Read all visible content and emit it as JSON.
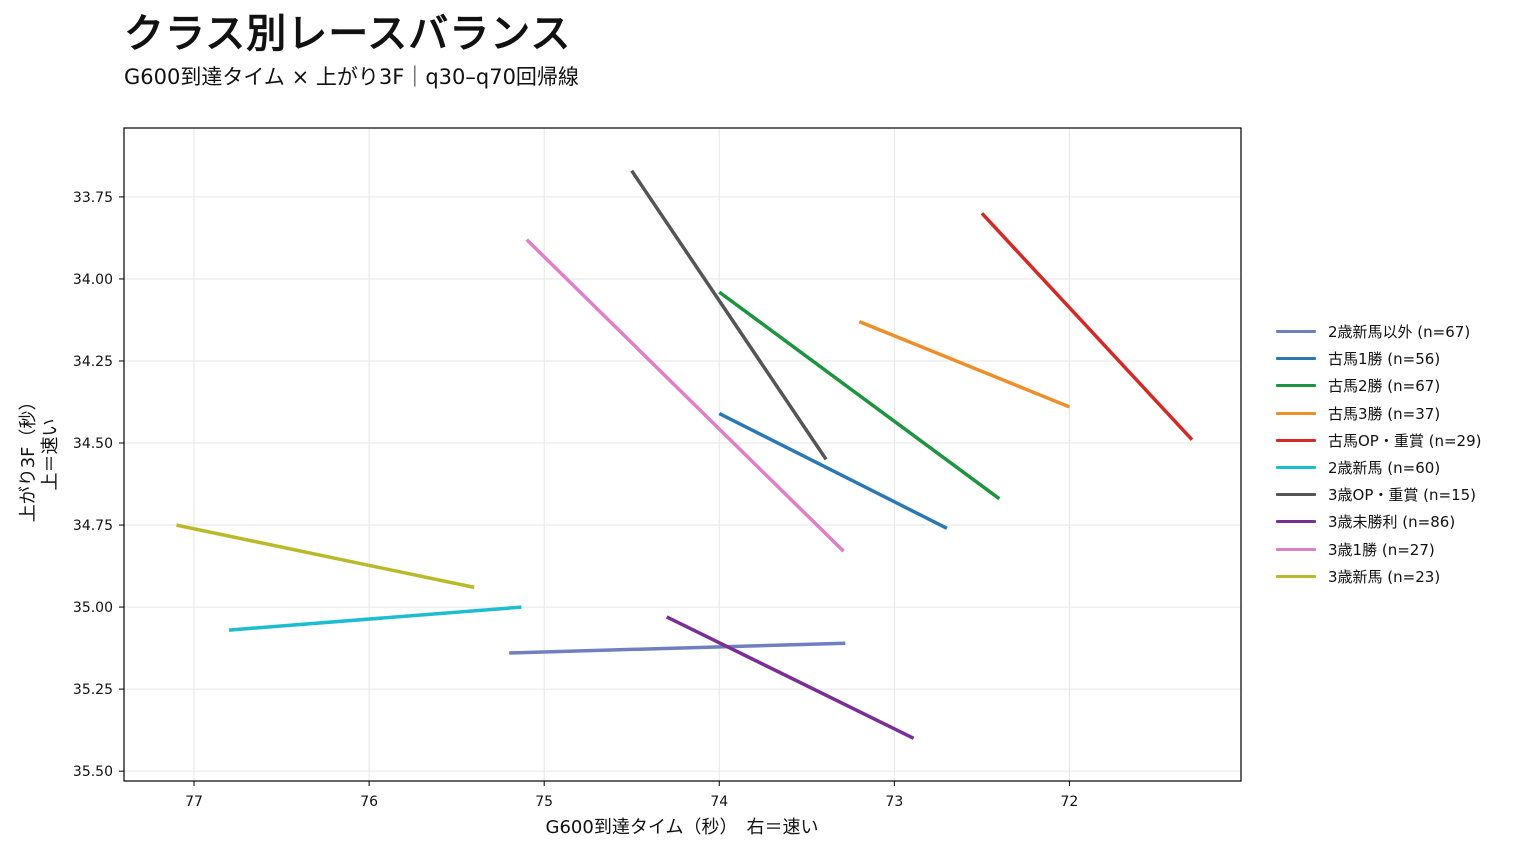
{
  "title": "クラス別レースバランス",
  "subtitle": "G600到達タイム × 上がり3F｜q30–q70回帰線",
  "chart_data": {
    "type": "line",
    "title": "クラス別レースバランス",
    "subtitle": "G600到達タイム × 上がり3F｜q30–q70回帰線",
    "xlabel": "G600到達タイム（秒）　右＝速い",
    "ylabel_lines": [
      "上がり3F（秒）",
      "上＝速い"
    ],
    "x_reversed": true,
    "y_reversed": true,
    "xlim": [
      77.4,
      71.02
    ],
    "ylim": [
      35.53,
      33.54
    ],
    "xticks": [
      77,
      76,
      75,
      74,
      73,
      72
    ],
    "yticks": [
      33.75,
      34.0,
      34.25,
      34.5,
      34.75,
      35.0,
      35.25,
      35.5
    ],
    "ytick_labels": [
      "33.75",
      "34.00",
      "34.25",
      "34.50",
      "34.75",
      "35.00",
      "35.25",
      "35.50"
    ],
    "grid": true,
    "legend_position": "right",
    "series": [
      {
        "name": "2歳新馬以外 (n=67)",
        "color": "#6f7fbf",
        "x": [
          75.2,
          73.28
        ],
        "y": [
          35.14,
          35.11
        ]
      },
      {
        "name": "古馬1勝 (n=56)",
        "color": "#2a78b5",
        "x": [
          74.0,
          72.7
        ],
        "y": [
          34.41,
          34.76
        ]
      },
      {
        "name": "古馬2勝 (n=67)",
        "color": "#1f9440",
        "x": [
          74.0,
          72.4
        ],
        "y": [
          34.04,
          34.67
        ]
      },
      {
        "name": "古馬3勝 (n=37)",
        "color": "#ef8f2a",
        "x": [
          73.2,
          72.0
        ],
        "y": [
          34.13,
          34.39
        ]
      },
      {
        "name": "古馬OP・重賞 (n=29)",
        "color": "#d42a26",
        "x": [
          72.5,
          71.3
        ],
        "y": [
          33.8,
          34.49
        ]
      },
      {
        "name": "2歳新馬 (n=60)",
        "color": "#1cbdd0",
        "x": [
          76.8,
          75.13
        ],
        "y": [
          35.07,
          35.0
        ]
      },
      {
        "name": "3歳OP・重賞 (n=15)",
        "color": "#555555",
        "x": [
          74.5,
          73.39
        ],
        "y": [
          33.67,
          34.55
        ]
      },
      {
        "name": "3歳未勝利 (n=86)",
        "color": "#7a2f96",
        "x": [
          74.3,
          72.89
        ],
        "y": [
          35.03,
          35.4
        ]
      },
      {
        "name": "3歳1勝 (n=27)",
        "color": "#e07ec8",
        "x": [
          75.1,
          73.29
        ],
        "y": [
          33.88,
          34.83
        ]
      },
      {
        "name": "3歳新馬 (n=23)",
        "color": "#bab92a",
        "x": [
          77.1,
          75.4
        ],
        "y": [
          34.75,
          34.94
        ]
      }
    ]
  }
}
